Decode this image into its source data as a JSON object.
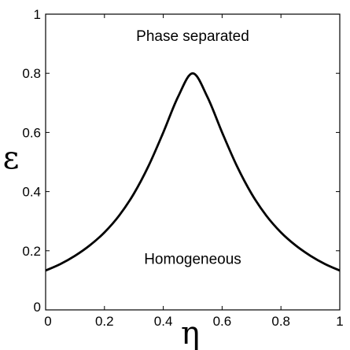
{
  "chart_data": {
    "type": "line",
    "title": "",
    "xlabel": "η",
    "ylabel": "ε",
    "xlim": [
      0,
      1
    ],
    "ylim": [
      0,
      1
    ],
    "xticks": [
      "0",
      "0.2",
      "0.4",
      "0.6",
      "0.8",
      "1"
    ],
    "yticks": [
      "0",
      "0.2",
      "0.4",
      "0.6",
      "0.8",
      "1"
    ],
    "grid": false,
    "annotations": [
      {
        "text": "Phase separated",
        "x": 0.5,
        "y": 0.91
      },
      {
        "text": "Homogeneous",
        "x": 0.5,
        "y": 0.155
      }
    ],
    "series": [
      {
        "color": "#000000",
        "x": [
          0.0,
          0.05,
          0.1,
          0.15,
          0.2,
          0.25,
          0.3,
          0.35,
          0.4,
          0.45,
          0.5,
          0.55,
          0.6,
          0.65,
          0.7,
          0.75,
          0.8,
          0.85,
          0.9,
          0.95,
          1.0
        ],
        "y": [
          0.133,
          0.155,
          0.183,
          0.218,
          0.262,
          0.319,
          0.393,
          0.487,
          0.6,
          0.72,
          0.8,
          0.72,
          0.6,
          0.487,
          0.393,
          0.319,
          0.262,
          0.218,
          0.183,
          0.155,
          0.133
        ]
      }
    ]
  }
}
